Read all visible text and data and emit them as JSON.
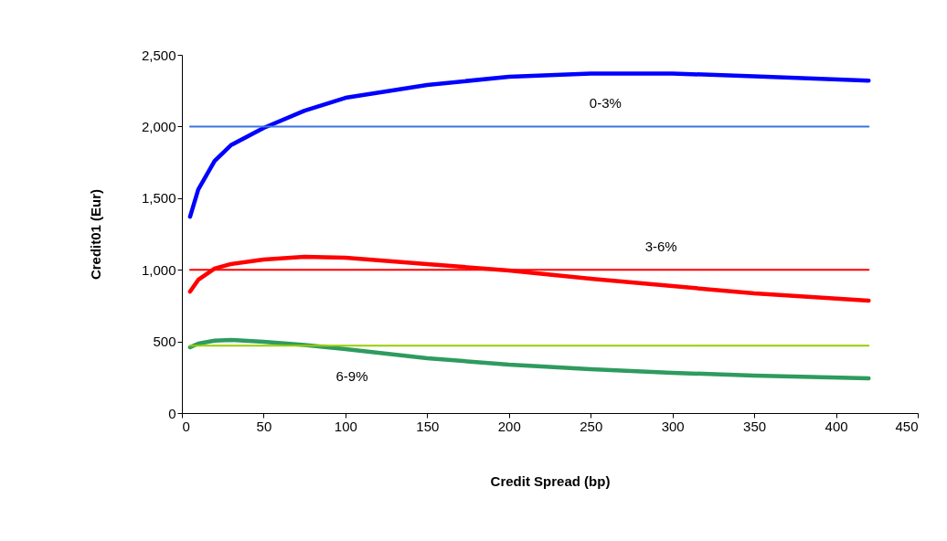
{
  "chart_data": {
    "type": "line",
    "xlabel": "Credit Spread (bp)",
    "ylabel": "Credit01 (Eur)",
    "xlim": [
      0,
      450
    ],
    "xticks": [
      0,
      50,
      100,
      150,
      200,
      250,
      300,
      350,
      400,
      450
    ],
    "ylim": [
      0,
      2500
    ],
    "yticks": [
      0,
      500,
      {
        "value": 1000,
        "label": "1,000"
      },
      {
        "value": 1500,
        "label": "1,500"
      },
      {
        "value": 2000,
        "label": "2,000"
      },
      {
        "value": 2500,
        "label": "2,500"
      }
    ],
    "grid": false,
    "marker": "none",
    "line_style": "solid",
    "series": [
      {
        "color": "#0000ff",
        "x": [
          5,
          10,
          20,
          30,
          50,
          75,
          100,
          150,
          200,
          250,
          300,
          350,
          420
        ],
        "values": [
          1370,
          1560,
          1760,
          1870,
          1990,
          2110,
          2200,
          2290,
          2347,
          2370,
          2370,
          2350,
          2320
        ]
      },
      {
        "color": "#ff0000",
        "x": [
          5,
          10,
          20,
          30,
          50,
          75,
          100,
          150,
          200,
          250,
          300,
          350,
          420
        ],
        "values": [
          848,
          930,
          1008,
          1040,
          1071,
          1090,
          1084,
          1040,
          995,
          937,
          886,
          835,
          784
        ]
      },
      {
        "color": "#2e9b5f",
        "x": [
          5,
          10,
          20,
          30,
          50,
          75,
          100,
          150,
          200,
          250,
          300,
          350,
          420
        ],
        "values": [
          459,
          485,
          505,
          510,
          497,
          475,
          446,
          383,
          338,
          306,
          281,
          262,
          242
        ]
      },
      {
        "color": "#3a75e0",
        "x": [
          5,
          420
        ],
        "values": [
          2000,
          2000
        ]
      },
      {
        "color": "#ff0000",
        "x": [
          5,
          420
        ],
        "values": [
          1000,
          1000
        ]
      },
      {
        "color": "#99cc00",
        "x": [
          5,
          420
        ],
        "values": [
          470,
          470
        ]
      }
    ],
    "annotations": [
      {
        "text": "0-3%",
        "x": 259,
        "y": 2000
      },
      {
        "text": "3-6%",
        "x": 293,
        "y": 1000
      },
      {
        "text": "6-9%",
        "x": 104,
        "y": 470
      }
    ]
  }
}
